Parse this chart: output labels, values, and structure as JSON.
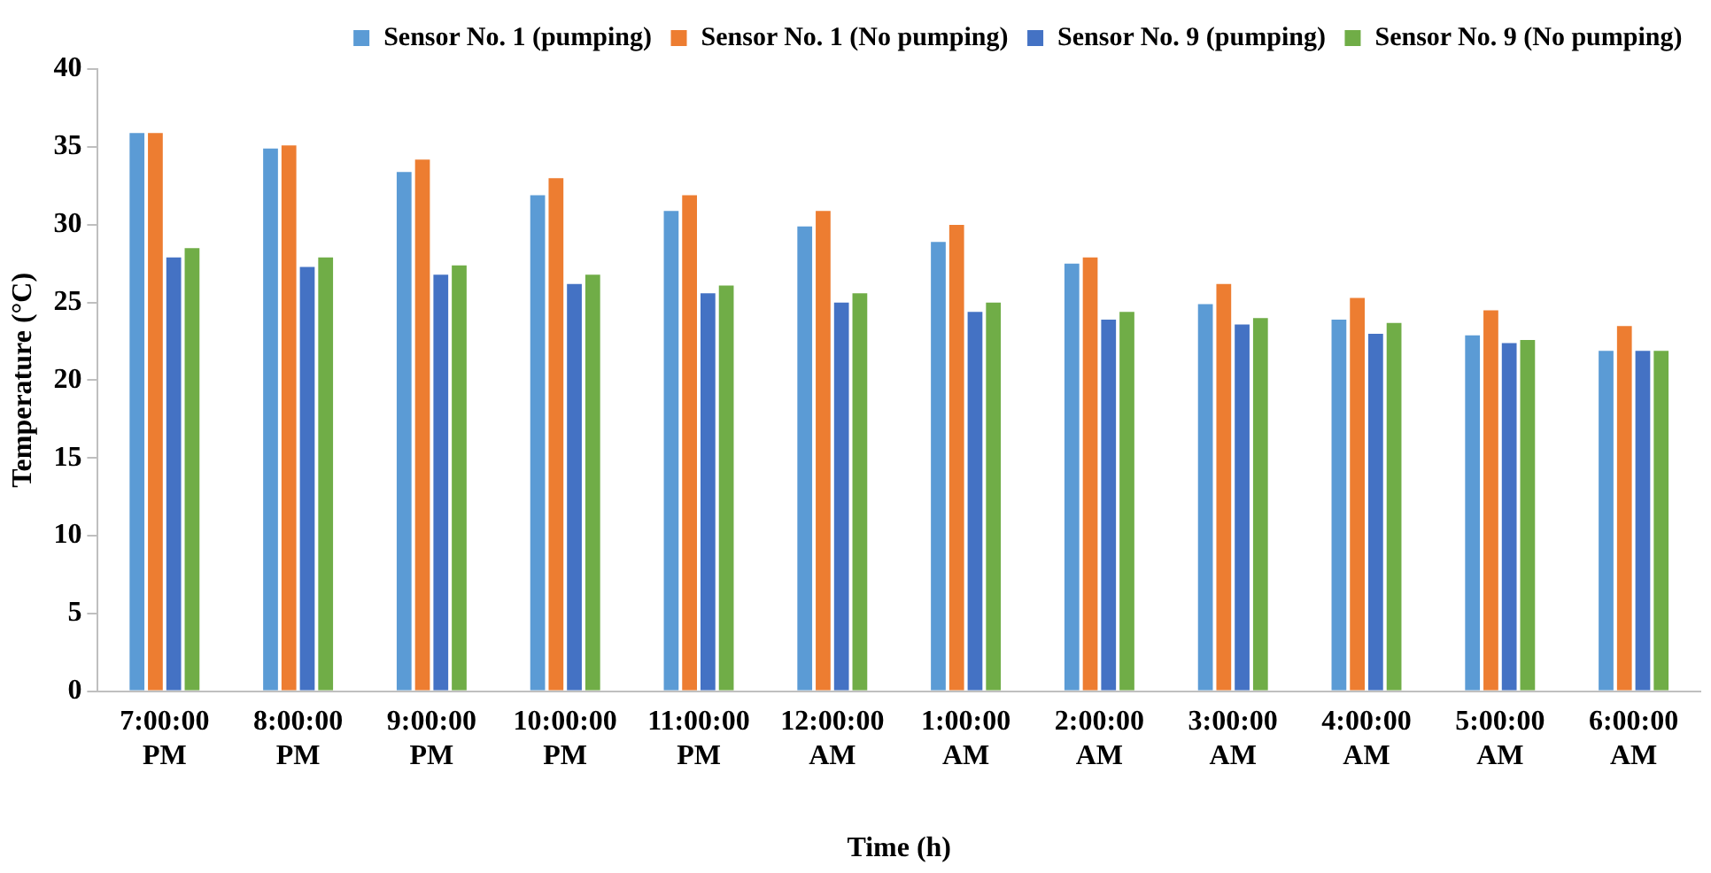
{
  "chart_data": {
    "type": "bar",
    "xlabel": "Time (h)",
    "ylabel": "Temperature (°C)",
    "categories": [
      "7:00:00 PM",
      "8:00:00 PM",
      "9:00:00 PM",
      "10:00:00 PM",
      "11:00:00 PM",
      "12:00:00 AM",
      "1:00:00 AM",
      "2:00:00 AM",
      "3:00:00 AM",
      "4:00:00 AM",
      "5:00:00 AM",
      "6:00:00 AM"
    ],
    "series": [
      {
        "name": "Sensor No. 1 (pumping)",
        "color": "#5b9bd5",
        "values": [
          36,
          35,
          33.5,
          32,
          31,
          30,
          29,
          27.6,
          25,
          24,
          23,
          22
        ]
      },
      {
        "name": "Sensor No. 1 (No pumping)",
        "color": "#ed7d31",
        "values": [
          36,
          35.2,
          34.3,
          33.1,
          32,
          31,
          30.1,
          28,
          26.3,
          25.4,
          24.6,
          23.6
        ]
      },
      {
        "name": "Sensor No. 9 (pumping)",
        "color": "#4472c4",
        "values": [
          28,
          27.4,
          26.9,
          26.3,
          25.7,
          25.1,
          24.5,
          24,
          23.7,
          23.1,
          22.5,
          22
        ]
      },
      {
        "name": "Sensor No. 9 (No pumping)",
        "color": "#70ad47",
        "values": [
          28.6,
          28,
          27.5,
          26.9,
          26.2,
          25.7,
          25.1,
          24.5,
          24.1,
          23.8,
          22.7,
          22
        ]
      }
    ],
    "ylim": [
      0,
      40
    ],
    "yticks": [
      0,
      5,
      10,
      15,
      20,
      25,
      30,
      35,
      40
    ],
    "grid": false,
    "legend": "top right"
  }
}
